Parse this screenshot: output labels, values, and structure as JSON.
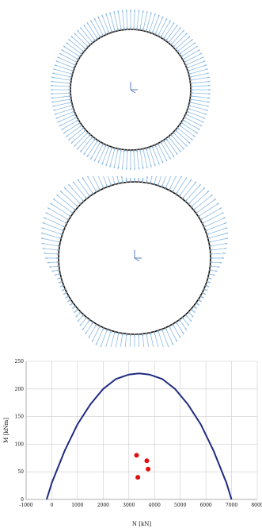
{
  "colors": {
    "ring_black": "#111111",
    "arrow_blue": "#8fbce6",
    "curve_navy": "#1f2a80",
    "point_red": "#e01010",
    "grid": "#cccccc"
  },
  "diagram_top": {
    "description_icon": "axis-triad-icon",
    "ring_nodes": 120,
    "load_profile": "uniform"
  },
  "diagram_mid": {
    "description_icon": "axis-triad-icon",
    "ring_nodes": 120,
    "load_profile": "three-lobe"
  },
  "chart_data": {
    "type": "line",
    "xlabel": "N [kN]",
    "ylabel": "M [kNm]",
    "xlim": [
      -1000,
      8000
    ],
    "ylim": [
      0,
      250
    ],
    "x_ticks": [
      "-1000",
      "0",
      "1000",
      "2000",
      "3000",
      "4000",
      "5000",
      "6000",
      "7000",
      "8000"
    ],
    "y_ticks": [
      "0",
      "50",
      "100",
      "150",
      "200",
      "250"
    ],
    "grid": true,
    "series": [
      {
        "type": "line",
        "x": [
          -200,
          0,
          500,
          1000,
          1500,
          2000,
          2500,
          3000,
          3400,
          3800,
          4300,
          4800,
          5300,
          5800,
          6300,
          6800,
          7000
        ],
        "y": [
          0,
          30,
          88,
          136,
          172,
          200,
          218,
          226,
          228,
          226,
          218,
          200,
          172,
          136,
          88,
          30,
          0
        ]
      },
      {
        "type": "scatter",
        "x": [
          3300,
          3700,
          3750,
          3350
        ],
        "y": [
          80,
          70,
          55,
          40
        ]
      }
    ]
  }
}
